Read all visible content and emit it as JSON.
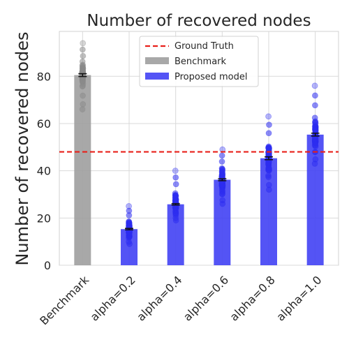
{
  "chart_data": {
    "type": "bar",
    "title": "Number of recovered nodes",
    "xlabel": "",
    "ylabel": "Number of recovered nodes",
    "categories": [
      "Benchmark",
      "alpha=0.2",
      "alpha=0.4",
      "alpha=0.6",
      "alpha=0.8",
      "alpha=1.0"
    ],
    "values": [
      80.5,
      15.3,
      25.8,
      36.2,
      45.3,
      55.3
    ],
    "errors": [
      0.6,
      0.3,
      0.3,
      0.4,
      0.6,
      0.6
    ],
    "bar_colors": [
      "#9e9e9e",
      "#4141f4",
      "#4141f4",
      "#4141f4",
      "#4141f4",
      "#4141f4"
    ],
    "scatter_ranges": [
      [
        66,
        94
      ],
      [
        9,
        25
      ],
      [
        19,
        40
      ],
      [
        26,
        49
      ],
      [
        32,
        63
      ],
      [
        43,
        76
      ]
    ],
    "ground_truth": 48,
    "ylim": [
      0,
      99
    ],
    "yticks": [
      0,
      20,
      40,
      60,
      80
    ],
    "grid": true,
    "legend_position": "top-center",
    "legend": [
      {
        "label": "Ground Truth",
        "kind": "dashed-line",
        "color": "#e8201a"
      },
      {
        "label": "Benchmark",
        "kind": "patch",
        "color": "#9e9e9e"
      },
      {
        "label": "Proposed model",
        "kind": "patch",
        "color": "#4141f4"
      }
    ]
  }
}
